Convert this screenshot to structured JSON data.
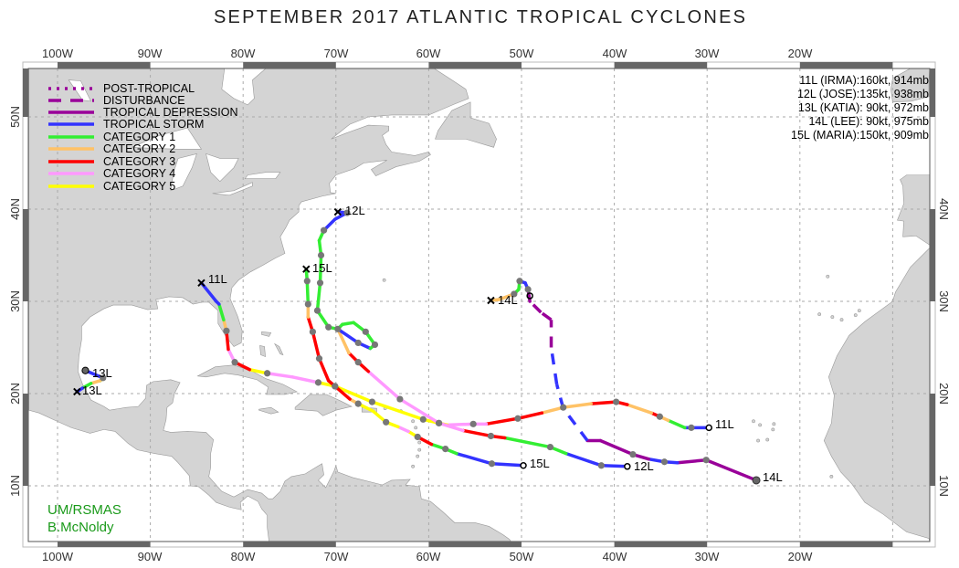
{
  "title": "SEPTEMBER 2017 ATLANTIC TROPICAL CYCLONES",
  "axes": {
    "lon_labels": [
      "100W",
      "90W",
      "80W",
      "70W",
      "60W",
      "50W",
      "40W",
      "30W",
      "20W"
    ],
    "lat_labels_left": [
      "10N",
      "20N",
      "30N",
      "40N",
      "50N"
    ],
    "lat_labels_right": [
      "10N",
      "20N",
      "30N",
      "40N"
    ]
  },
  "legend": [
    {
      "label": "POST-TROPICAL",
      "code": "PT",
      "color": "#990099",
      "style": "dotted"
    },
    {
      "label": "DISTURBANCE",
      "code": "DB",
      "color": "#990099",
      "style": "dashed"
    },
    {
      "label": "TROPICAL DEPRESSION",
      "code": "TD",
      "color": "#990099",
      "style": "solid"
    },
    {
      "label": "TROPICAL STORM",
      "code": "TS",
      "color": "#3333ff",
      "style": "solid"
    },
    {
      "label": "CATEGORY 1",
      "code": "C1",
      "color": "#33ee33",
      "style": "solid"
    },
    {
      "label": "CATEGORY 2",
      "code": "C2",
      "color": "#ffc266",
      "style": "solid"
    },
    {
      "label": "CATEGORY 3",
      "code": "C3",
      "color": "#ff0000",
      "style": "solid"
    },
    {
      "label": "CATEGORY 4",
      "code": "C4",
      "color": "#ff99ff",
      "style": "solid"
    },
    {
      "label": "CATEGORY 5",
      "code": "C5",
      "color": "#ffff00",
      "style": "solid"
    }
  ],
  "stats": [
    "11L (IRMA):160kt, 914mb",
    "12L (JOSE):135kt, 938mb",
    "13L (KATIA): 90kt, 972mb",
    "14L (LEE): 90kt, 975mb",
    "15L (MARIA):150kt, 909mb"
  ],
  "credits": [
    "UM/RSMAS",
    "B.McNoldy"
  ],
  "colors": {
    "land": "#d4d4d4",
    "coast": "#999999",
    "fix_dot": "#777777",
    "frame_dark": "#666666"
  },
  "storms": [
    {
      "id": "11L",
      "name": "IRMA",
      "start_label": "11L",
      "end_label": "11L",
      "start_marker": "circle",
      "points": [
        [
          -29.8,
          16.3,
          null,
          0
        ],
        [
          -31.7,
          16.3,
          "TS",
          1
        ],
        [
          -32.4,
          16.3,
          "TS",
          0
        ],
        [
          -34.2,
          17.1,
          "C1",
          0
        ],
        [
          -35.1,
          17.5,
          "C2",
          1
        ],
        [
          -36.0,
          17.9,
          "C3",
          0
        ],
        [
          -38.6,
          18.8,
          "C2",
          0
        ],
        [
          -39.8,
          19.1,
          "C3",
          1
        ],
        [
          -42.5,
          18.9,
          "C3",
          0
        ],
        [
          -45.5,
          18.5,
          "C2",
          1
        ],
        [
          -47.8,
          17.9,
          "C2",
          0
        ],
        [
          -50.4,
          17.3,
          "C3",
          1
        ],
        [
          -53.8,
          16.7,
          "C3",
          0
        ],
        [
          -55.2,
          16.7,
          "C4",
          1
        ],
        [
          -58.0,
          16.6,
          "C4",
          0
        ],
        [
          -58.9,
          16.8,
          "C5",
          1
        ],
        [
          -60.6,
          17.2,
          "C5",
          1
        ],
        [
          -66.1,
          19.1,
          "C5",
          1
        ],
        [
          -70.1,
          20.8,
          "C5",
          1
        ],
        [
          -71.9,
          21.2,
          "C5",
          1
        ],
        [
          -74.7,
          21.8,
          "C4",
          0
        ],
        [
          -77.4,
          22.2,
          "C4",
          1
        ],
        [
          -79.3,
          22.6,
          "C5",
          0
        ],
        [
          -80.9,
          23.4,
          "C3",
          1
        ],
        [
          -81.6,
          24.8,
          "C4",
          0
        ],
        [
          -81.8,
          26.8,
          "C3",
          1
        ],
        [
          -82.1,
          28.0,
          "C2",
          0
        ],
        [
          -82.6,
          29.7,
          "C1",
          0
        ],
        [
          -82.9,
          30.0,
          "TS",
          0
        ],
        [
          -84.5,
          32.0,
          "TS",
          0
        ]
      ]
    },
    {
      "id": "12L",
      "name": "JOSE",
      "start_label": "12L",
      "end_label": "12L",
      "start_marker": "circle",
      "points": [
        [
          -38.6,
          12.1,
          null,
          0
        ],
        [
          -41.4,
          12.2,
          "TS",
          1
        ],
        [
          -45.2,
          13.5,
          "TS",
          0
        ],
        [
          -46.9,
          14.2,
          "C1",
          1
        ],
        [
          -51.8,
          15.2,
          "C1",
          0
        ],
        [
          -53.3,
          15.4,
          "C3",
          1
        ],
        [
          -56.3,
          16.0,
          "C3",
          0
        ],
        [
          -58.9,
          16.8,
          "C4",
          1
        ],
        [
          -63.1,
          19.4,
          "C4",
          1
        ],
        [
          -66.5,
          22.4,
          "C4",
          0
        ],
        [
          -67.6,
          23.4,
          "C3",
          1
        ],
        [
          -68.6,
          24.4,
          "C3",
          0
        ],
        [
          -69.8,
          27.0,
          "C2",
          1
        ],
        [
          -67.6,
          25.5,
          "TS",
          1
        ],
        [
          -66.3,
          24.9,
          "TS",
          0
        ],
        [
          -65.8,
          25.3,
          "C1",
          1
        ],
        [
          -66.8,
          26.7,
          "C1",
          1
        ],
        [
          -68.1,
          27.7,
          "C1",
          0
        ],
        [
          -69.3,
          27.5,
          "C1",
          0
        ],
        [
          -69.8,
          27.0,
          "C1",
          0
        ],
        [
          -70.8,
          27.2,
          "C1",
          1
        ],
        [
          -72.0,
          29.0,
          "C1",
          1
        ],
        [
          -71.7,
          32.0,
          "C1",
          1
        ],
        [
          -71.6,
          35.0,
          "C1",
          1
        ],
        [
          -71.8,
          36.6,
          "C1",
          0
        ],
        [
          -71.3,
          37.7,
          "C1",
          1
        ],
        [
          -70.1,
          38.9,
          "TS",
          0
        ],
        [
          -68.8,
          39.6,
          "TS",
          1
        ],
        [
          -69.8,
          39.7,
          "TS",
          0
        ]
      ]
    },
    {
      "id": "13L",
      "name": "KATIA",
      "start_label": "13L",
      "end_label": "13L",
      "start_marker": "filled",
      "points": [
        [
          -97.0,
          22.5,
          null,
          0
        ],
        [
          -95.1,
          21.7,
          "TS",
          1
        ],
        [
          -95.4,
          21.4,
          "C1",
          0
        ],
        [
          -96.4,
          21.1,
          "C2",
          0
        ],
        [
          -97.3,
          20.6,
          "C1",
          0
        ],
        [
          -97.9,
          20.2,
          "TS",
          0
        ]
      ]
    },
    {
      "id": "14L",
      "name": "LEE",
      "start_label": "14L",
      "end_label": "14L",
      "start_marker": "dot",
      "second_start": [
        -49.1,
        30.6
      ],
      "points": [
        [
          -24.7,
          10.6,
          null,
          1
        ],
        [
          -30.1,
          12.8,
          "TD",
          1
        ],
        [
          -33.2,
          12.5,
          "TD",
          0
        ],
        [
          -34.6,
          12.6,
          "TS",
          1
        ],
        [
          -36.3,
          12.9,
          "TS",
          0
        ],
        [
          -38.0,
          13.4,
          "TD",
          1
        ],
        [
          -41.5,
          14.9,
          "TD",
          0
        ],
        [
          -42.9,
          14.9,
          "TD",
          0
        ],
        [
          -45.5,
          18.4,
          "TSd",
          0
        ],
        [
          -46.2,
          21.0,
          "TSd",
          0
        ],
        [
          -46.8,
          25.0,
          "TSd",
          0
        ],
        [
          -46.8,
          28.0,
          "TDd",
          0
        ],
        [
          -47.9,
          28.8,
          "TDd",
          0
        ],
        [
          -49.1,
          30.0,
          "TDd",
          0
        ],
        [
          -49.3,
          31.3,
          "TD",
          1
        ],
        [
          -49.6,
          32.0,
          "TS",
          0
        ],
        [
          -50.2,
          32.2,
          "TS",
          1
        ],
        [
          -50.3,
          31.3,
          "C1",
          0
        ],
        [
          -50.8,
          30.8,
          "C1",
          1
        ],
        [
          -52.4,
          30.2,
          "C2",
          0
        ],
        [
          -53.3,
          30.1,
          "C2",
          0
        ]
      ]
    },
    {
      "id": "15L",
      "name": "MARIA",
      "start_label": "15L",
      "end_label": "15L",
      "start_marker": "circle",
      "points": [
        [
          -49.8,
          12.2,
          null,
          0
        ],
        [
          -53.2,
          12.4,
          "TS",
          1
        ],
        [
          -57.0,
          13.5,
          "TS",
          0
        ],
        [
          -58.2,
          14.0,
          "C1",
          1
        ],
        [
          -59.7,
          14.5,
          "C1",
          0
        ],
        [
          -61.2,
          15.3,
          "C3",
          1
        ],
        [
          -62.2,
          15.9,
          "C5",
          0
        ],
        [
          -63.3,
          16.4,
          "C4",
          0
        ],
        [
          -64.6,
          16.9,
          "C5",
          1
        ],
        [
          -66.0,
          18.1,
          "C5",
          0
        ],
        [
          -67.6,
          18.9,
          "C5",
          1
        ],
        [
          -68.5,
          19.4,
          "C2",
          0
        ],
        [
          -70.1,
          20.8,
          "C3",
          1
        ],
        [
          -70.8,
          21.4,
          "C3",
          0
        ],
        [
          -71.8,
          23.8,
          "C3",
          1
        ],
        [
          -72.5,
          26.7,
          "C3",
          1
        ],
        [
          -73.0,
          28.3,
          "C3",
          0
        ],
        [
          -73.0,
          29.7,
          "C2",
          1
        ],
        [
          -73.1,
          32.2,
          "C1",
          1
        ],
        [
          -73.2,
          33.5,
          "C1",
          0
        ]
      ]
    }
  ]
}
